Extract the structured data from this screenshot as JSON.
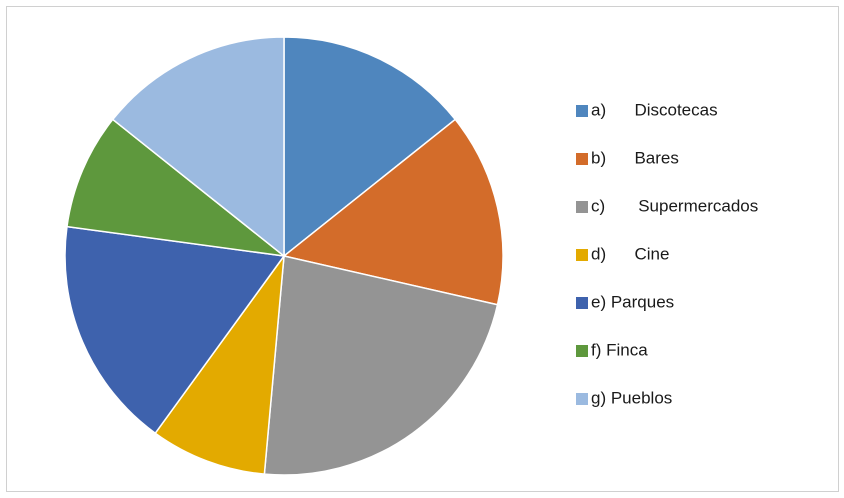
{
  "chart_data": {
    "type": "pie",
    "categories": [
      "a)      Discotecas",
      "b)      Bares",
      "c)       Supermercados",
      "d)      Cine",
      "e) Parques",
      "f) Finca",
      "g) Pueblos"
    ],
    "values": [
      5,
      5,
      8,
      3,
      6,
      3,
      5
    ],
    "colors": [
      "#4f86be",
      "#d36c2a",
      "#949494",
      "#e3aa00",
      "#3e62ad",
      "#5e983d",
      "#9bbae0"
    ],
    "legend": "right"
  }
}
